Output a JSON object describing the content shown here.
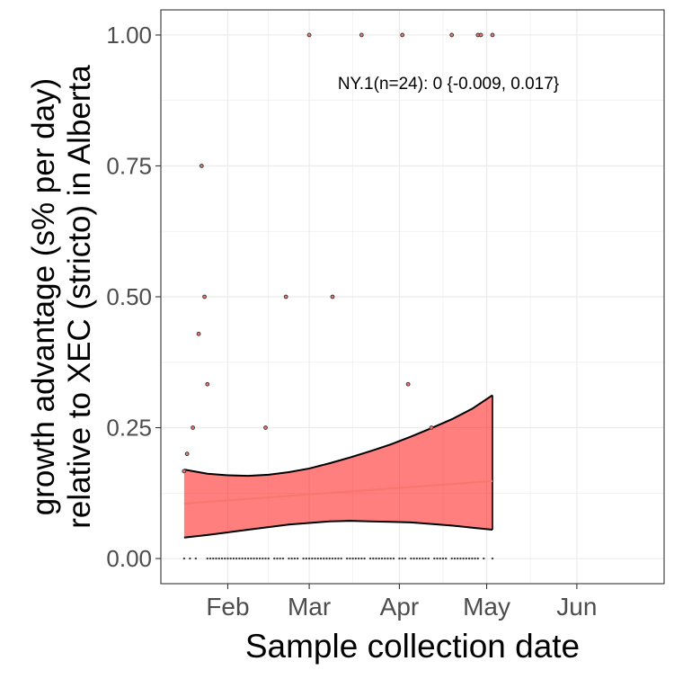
{
  "chart_data": {
    "type": "scatter",
    "title": "",
    "xlabel": "Sample collection date",
    "ylabel_lines": [
      "growth advantage (s% per day)",
      "relative to XEC (stricto) in Alberta"
    ],
    "annotation": "NY.1(n=24): 0 {-0.009, 0.017}",
    "x_ticks": [
      {
        "label": "Feb",
        "date": "2025-02-01"
      },
      {
        "label": "Mar",
        "date": "2025-03-01"
      },
      {
        "label": "Apr",
        "date": "2025-04-01"
      },
      {
        "label": "May",
        "date": "2025-05-01"
      },
      {
        "label": "Jun",
        "date": "2025-06-01"
      }
    ],
    "xlim": [
      "2025-01-09",
      "2025-07-01"
    ],
    "y_ticks": [
      {
        "label": "0.00",
        "value": 0
      },
      {
        "label": "0.25",
        "value": 0.25
      },
      {
        "label": "0.50",
        "value": 0.5
      },
      {
        "label": "0.75",
        "value": 0.75
      },
      {
        "label": "1.00",
        "value": 1.0
      }
    ],
    "ylim": [
      -0.048,
      1.048
    ],
    "grid": true,
    "colors": {
      "fit_line": "#f8766d",
      "ribbon_fill": "#ff0000",
      "ribbon_edge": "#000000",
      "points": "#3a3a3a",
      "point_fill": "#f8766d"
    },
    "fit_line": {
      "x": [
        "2025-01-17",
        "2025-05-03"
      ],
      "y": [
        0.105,
        0.148
      ]
    },
    "ribbon": {
      "x": [
        "2025-01-17",
        "2025-01-25",
        "2025-02-01",
        "2025-02-08",
        "2025-02-15",
        "2025-02-22",
        "2025-03-01",
        "2025-03-08",
        "2025-03-15",
        "2025-03-22",
        "2025-03-29",
        "2025-04-05",
        "2025-04-12",
        "2025-04-19",
        "2025-04-26",
        "2025-05-03"
      ],
      "lower": [
        0.04,
        0.045,
        0.05,
        0.055,
        0.06,
        0.065,
        0.068,
        0.071,
        0.072,
        0.071,
        0.07,
        0.069,
        0.066,
        0.063,
        0.059,
        0.055
      ],
      "upper": [
        0.17,
        0.162,
        0.159,
        0.158,
        0.16,
        0.165,
        0.172,
        0.182,
        0.193,
        0.205,
        0.218,
        0.233,
        0.249,
        0.266,
        0.286,
        0.312
      ]
    },
    "points": [
      {
        "x": "2025-01-17",
        "y": 0.167
      },
      {
        "x": "2025-01-18",
        "y": 0.2
      },
      {
        "x": "2025-01-20",
        "y": 0.25
      },
      {
        "x": "2025-01-22",
        "y": 0.429
      },
      {
        "x": "2025-01-23",
        "y": 0.75
      },
      {
        "x": "2025-01-24",
        "y": 0.5
      },
      {
        "x": "2025-01-25",
        "y": 0.333
      },
      {
        "x": "2025-02-14",
        "y": 0.25
      },
      {
        "x": "2025-02-21",
        "y": 0.5
      },
      {
        "x": "2025-03-01",
        "y": 1.0
      },
      {
        "x": "2025-03-09",
        "y": 0.5
      },
      {
        "x": "2025-03-19",
        "y": 1.0
      },
      {
        "x": "2025-04-02",
        "y": 1.0
      },
      {
        "x": "2025-04-04",
        "y": 0.333
      },
      {
        "x": "2025-04-12",
        "y": 0.25
      },
      {
        "x": "2025-04-19",
        "y": 1.0
      },
      {
        "x": "2025-04-28",
        "y": 1.0
      },
      {
        "x": "2025-04-29",
        "y": 1.0
      },
      {
        "x": "2025-05-03",
        "y": 1.0
      }
    ],
    "zero_points": {
      "y": 0,
      "dates": [
        "2025-01-17",
        "2025-01-19",
        "2025-01-21",
        "2025-01-25",
        "2025-01-26",
        "2025-01-27",
        "2025-01-28",
        "2025-01-29",
        "2025-01-30",
        "2025-01-31",
        "2025-02-01",
        "2025-02-02",
        "2025-02-03",
        "2025-02-04",
        "2025-02-05",
        "2025-02-06",
        "2025-02-07",
        "2025-02-08",
        "2025-02-09",
        "2025-02-10",
        "2025-02-11",
        "2025-02-12",
        "2025-02-13",
        "2025-02-14",
        "2025-02-15",
        "2025-02-17",
        "2025-02-18",
        "2025-02-19",
        "2025-02-20",
        "2025-02-22",
        "2025-02-23",
        "2025-02-24",
        "2025-02-25",
        "2025-02-27",
        "2025-02-28",
        "2025-03-01",
        "2025-03-02",
        "2025-03-03",
        "2025-03-04",
        "2025-03-05",
        "2025-03-06",
        "2025-03-07",
        "2025-03-08",
        "2025-03-09",
        "2025-03-10",
        "2025-03-11",
        "2025-03-12",
        "2025-03-14",
        "2025-03-15",
        "2025-03-16",
        "2025-03-17",
        "2025-03-18",
        "2025-03-19",
        "2025-03-20",
        "2025-03-22",
        "2025-03-23",
        "2025-03-24",
        "2025-03-25",
        "2025-03-26",
        "2025-03-27",
        "2025-03-28",
        "2025-03-29",
        "2025-03-30",
        "2025-04-01",
        "2025-04-02",
        "2025-04-03",
        "2025-04-05",
        "2025-04-06",
        "2025-04-07",
        "2025-04-08",
        "2025-04-09",
        "2025-04-10",
        "2025-04-11",
        "2025-04-13",
        "2025-04-14",
        "2025-04-15",
        "2025-04-16",
        "2025-04-17",
        "2025-04-19",
        "2025-04-20",
        "2025-04-21",
        "2025-04-22",
        "2025-04-23",
        "2025-04-24",
        "2025-04-25",
        "2025-04-26",
        "2025-04-27",
        "2025-04-28",
        "2025-04-30",
        "2025-05-03"
      ]
    }
  }
}
